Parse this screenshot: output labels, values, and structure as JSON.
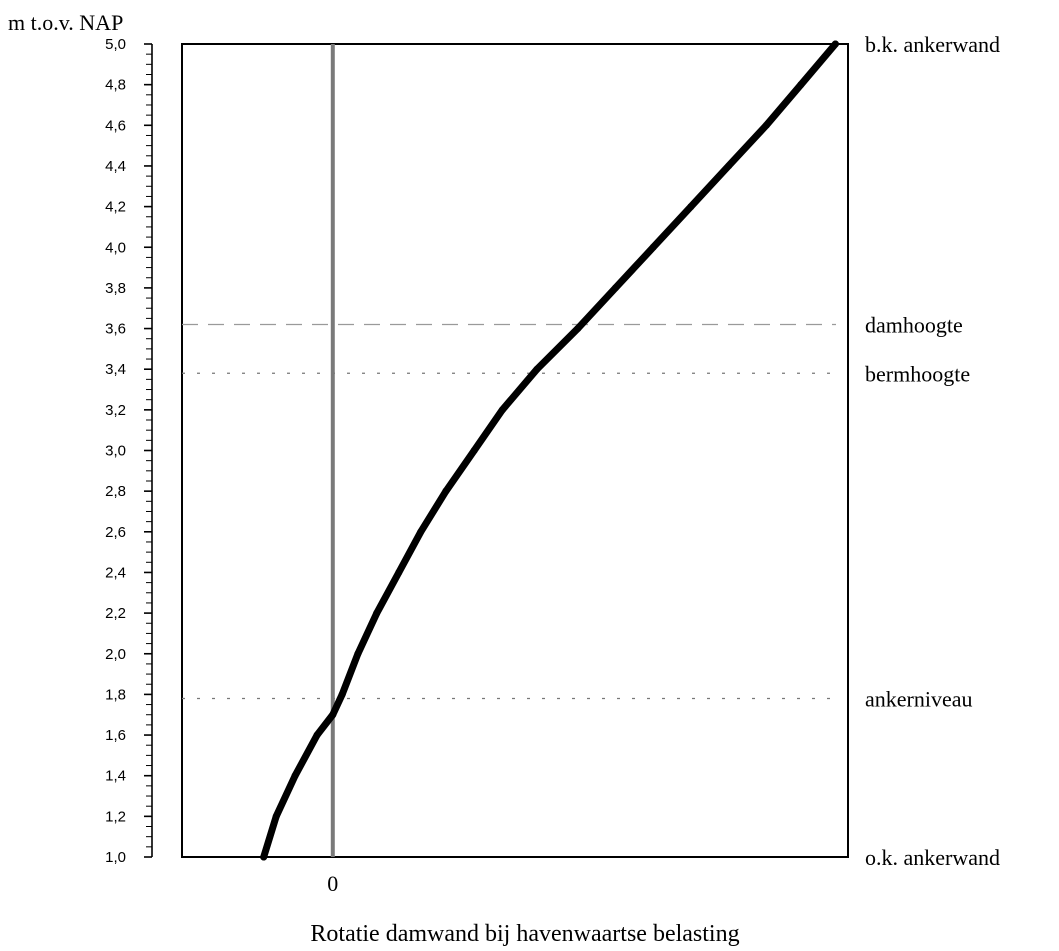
{
  "chart_data": {
    "type": "line",
    "ylabel": "m t.o.v. NAP",
    "xlabel": "Rotatie damwand bij havenwaartse belasting",
    "x_tick_labels": [
      {
        "label": "0",
        "x": 0
      }
    ],
    "y_tick_labels": [
      "1,0",
      "1,2",
      "1,4",
      "1,6",
      "1,8",
      "2,0",
      "2,2",
      "2,4",
      "2,6",
      "2,8",
      "3,0",
      "3,2",
      "3,4",
      "3,6",
      "3,8",
      "4,0",
      "4,2",
      "4,4",
      "4,6",
      "4,8",
      "5,0"
    ],
    "ylim": [
      1.0,
      5.0
    ],
    "xlim": [
      -0.48,
      1.64
    ],
    "yticks_major": [
      1.0,
      1.2,
      1.4,
      1.6,
      1.8,
      2.0,
      2.2,
      2.4,
      2.6,
      2.8,
      3.0,
      3.2,
      3.4,
      3.6,
      3.8,
      4.0,
      4.2,
      4.4,
      4.6,
      4.8,
      5.0
    ],
    "grid": false,
    "zero_line": {
      "x": 0,
      "color": "#7a7a7a"
    },
    "series": [
      {
        "color": "#000000",
        "points": [
          [
            -0.22,
            1.0
          ],
          [
            -0.18,
            1.2
          ],
          [
            -0.12,
            1.4
          ],
          [
            -0.05,
            1.6
          ],
          [
            0.0,
            1.7
          ],
          [
            0.03,
            1.8
          ],
          [
            0.08,
            2.0
          ],
          [
            0.14,
            2.2
          ],
          [
            0.21,
            2.4
          ],
          [
            0.28,
            2.6
          ],
          [
            0.36,
            2.8
          ],
          [
            0.45,
            3.0
          ],
          [
            0.54,
            3.2
          ],
          [
            0.65,
            3.4
          ],
          [
            0.78,
            3.6
          ],
          [
            0.9,
            3.8
          ],
          [
            1.02,
            4.0
          ],
          [
            1.14,
            4.2
          ],
          [
            1.26,
            4.4
          ],
          [
            1.38,
            4.6
          ],
          [
            1.49,
            4.8
          ],
          [
            1.6,
            5.0
          ]
        ]
      }
    ],
    "reference_lines": [
      {
        "label": "damhoogte",
        "y": 3.62,
        "style": "dashed",
        "color": "#9a9a9a"
      },
      {
        "label": "bermhoogte",
        "y": 3.38,
        "style": "dotted",
        "color": "#777777"
      },
      {
        "label": "ankerniveau",
        "y": 1.78,
        "style": "dotted",
        "color": "#777777"
      }
    ],
    "side_labels": [
      {
        "label": "b.k. ankerwand",
        "y": 5.0
      },
      {
        "label": "damhoogte",
        "y": 3.62
      },
      {
        "label": "bermhoogte",
        "y": 3.38
      },
      {
        "label": "ankerniveau",
        "y": 1.78
      },
      {
        "label": "o.k. ankerwand",
        "y": 1.0
      }
    ]
  }
}
